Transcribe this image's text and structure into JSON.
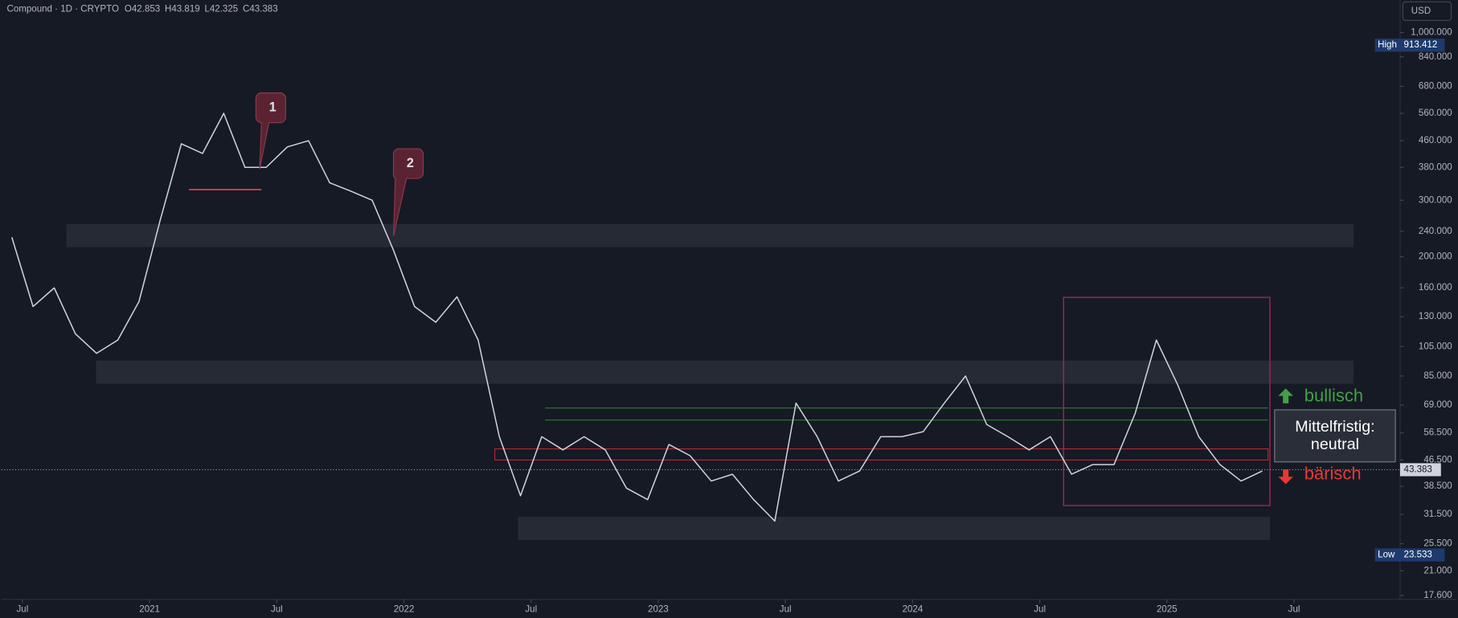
{
  "chart_data": {
    "type": "line",
    "symbol": "Compound · 1D · CRYPTO",
    "ohlc": [
      {
        "label": "O",
        "value": 42.853
      },
      {
        "label": "H",
        "value": 43.819
      },
      {
        "label": "L",
        "value": 42.325
      },
      {
        "label": "C",
        "value": 43.383
      }
    ],
    "currency": "USD",
    "y_scale": "log",
    "color": "#d1d4dc",
    "x": [
      "2020-06",
      "2020-07",
      "2020-08",
      "2020-09",
      "2020-10",
      "2020-11",
      "2020-12",
      "2021-01",
      "2021-02",
      "2021-03",
      "2021-04",
      "2021-05",
      "2021-06",
      "2021-07",
      "2021-08",
      "2021-09",
      "2021-10",
      "2021-11",
      "2021-12",
      "2022-01",
      "2022-02",
      "2022-03",
      "2022-04",
      "2022-05",
      "2022-06",
      "2022-07",
      "2022-08",
      "2022-09",
      "2022-10",
      "2022-11",
      "2022-12",
      "2023-01",
      "2023-02",
      "2023-03",
      "2023-04",
      "2023-05",
      "2023-06",
      "2023-07",
      "2023-08",
      "2023-09",
      "2023-10",
      "2023-11",
      "2023-12",
      "2024-01",
      "2024-02",
      "2024-03",
      "2024-04",
      "2024-05",
      "2024-06",
      "2024-07",
      "2024-08",
      "2024-09",
      "2024-10",
      "2024-11",
      "2024-12",
      "2025-01",
      "2025-02",
      "2025-03",
      "2025-04",
      "2025-05"
    ],
    "values": [
      230,
      140,
      160,
      115,
      100,
      110,
      145,
      260,
      450,
      420,
      560,
      380,
      380,
      440,
      460,
      340,
      320,
      300,
      210,
      140,
      125,
      150,
      110,
      55,
      36,
      55,
      50,
      55,
      50,
      38,
      35,
      52,
      48,
      40,
      42,
      35,
      30,
      70,
      55,
      40,
      43,
      55,
      55,
      57,
      70,
      85,
      60,
      55,
      50,
      55,
      42,
      45,
      45,
      65,
      110,
      80,
      55,
      45,
      40,
      43
    ],
    "xlim": [
      "2020-06",
      "2025-12"
    ],
    "xticks": [
      {
        "value": "2020-07",
        "label": "Jul"
      },
      {
        "value": "2021-01",
        "label": "2021"
      },
      {
        "value": "2021-07",
        "label": "Jul"
      },
      {
        "value": "2022-01",
        "label": "2022"
      },
      {
        "value": "2022-07",
        "label": "Jul"
      },
      {
        "value": "2023-01",
        "label": "2023"
      },
      {
        "value": "2023-07",
        "label": "Jul"
      },
      {
        "value": "2024-01",
        "label": "2024"
      },
      {
        "value": "2024-07",
        "label": "Jul"
      },
      {
        "value": "2025-01",
        "label": "2025"
      },
      {
        "value": "2025-07",
        "label": "Jul"
      }
    ],
    "ylim": [
      17.1,
      1263
    ],
    "yticks": [
      {
        "value": 1000,
        "label": "1,000.000"
      },
      {
        "value": 840,
        "label": "840.000"
      },
      {
        "value": 680,
        "label": "680.000"
      },
      {
        "value": 560,
        "label": "560.000"
      },
      {
        "value": 460,
        "label": "460.000"
      },
      {
        "value": 380,
        "label": "380.000"
      },
      {
        "value": 300,
        "label": "300.000"
      },
      {
        "value": 240,
        "label": "240.000"
      },
      {
        "value": 200,
        "label": "200.000"
      },
      {
        "value": 160,
        "label": "160.000"
      },
      {
        "value": 130,
        "label": "130.000"
      },
      {
        "value": 105,
        "label": "105.000"
      },
      {
        "value": 85,
        "label": "85.000"
      },
      {
        "value": 69,
        "label": "69.000"
      },
      {
        "value": 56.5,
        "label": "56.500"
      },
      {
        "value": 46.5,
        "label": "46.500"
      },
      {
        "value": 38.5,
        "label": "38.500"
      },
      {
        "value": 31.5,
        "label": "31.500"
      },
      {
        "value": 25.5,
        "label": "25.500"
      },
      {
        "value": 21,
        "label": "21.000"
      },
      {
        "value": 17.6,
        "label": "17.600"
      }
    ],
    "high": {
      "label": "High",
      "value": 913.412
    },
    "low": {
      "label": "Low",
      "value": 23.533
    },
    "last": 43.383,
    "annotations": {
      "markers": [
        "1",
        "2"
      ],
      "up": "bullisch",
      "down": "bärisch",
      "box": [
        "Mittelfristig:",
        "neutral"
      ]
    }
  }
}
